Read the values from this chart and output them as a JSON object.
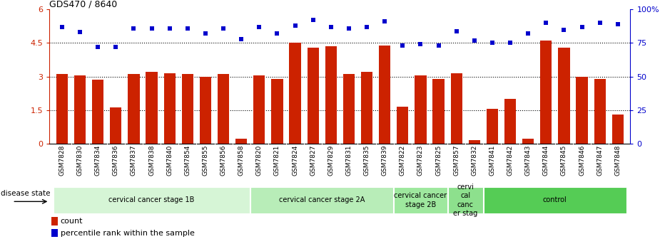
{
  "title": "GDS470 / 8640",
  "samples": [
    "GSM7828",
    "GSM7830",
    "GSM7834",
    "GSM7836",
    "GSM7837",
    "GSM7838",
    "GSM7840",
    "GSM7854",
    "GSM7855",
    "GSM7856",
    "GSM7858",
    "GSM7820",
    "GSM7821",
    "GSM7824",
    "GSM7827",
    "GSM7829",
    "GSM7831",
    "GSM7835",
    "GSM7839",
    "GSM7822",
    "GSM7823",
    "GSM7825",
    "GSM7857",
    "GSM7832",
    "GSM7841",
    "GSM7842",
    "GSM7843",
    "GSM7844",
    "GSM7845",
    "GSM7846",
    "GSM7847",
    "GSM7848"
  ],
  "bar_values": [
    3.1,
    3.05,
    2.85,
    1.6,
    3.1,
    3.2,
    3.15,
    3.1,
    3.0,
    3.1,
    0.2,
    3.05,
    2.9,
    4.5,
    4.3,
    4.35,
    3.1,
    3.2,
    4.4,
    1.65,
    3.05,
    2.9,
    3.15,
    0.15,
    1.55,
    2.0,
    0.2,
    4.6,
    4.3,
    3.0,
    2.9,
    1.3
  ],
  "scatter_values": [
    87,
    83,
    72,
    72,
    86,
    86,
    86,
    86,
    82,
    86,
    78,
    87,
    82,
    88,
    92,
    87,
    86,
    87,
    91,
    73,
    74,
    73,
    84,
    77,
    75,
    75,
    82,
    90,
    85,
    87,
    90,
    89
  ],
  "bar_color": "#cc2200",
  "scatter_color": "#0000cc",
  "ylim_left": [
    0,
    6
  ],
  "ylim_right": [
    0,
    100
  ],
  "yticks_left": [
    0,
    1.5,
    3.0,
    4.5,
    6.0
  ],
  "yticks_left_labels": [
    "0",
    "1.5",
    "3",
    "4.5",
    "6"
  ],
  "yticks_right": [
    0,
    25,
    50,
    75,
    100
  ],
  "yticks_right_labels": [
    "0",
    "25",
    "50",
    "75",
    "100%"
  ],
  "groups": [
    {
      "start": 0,
      "end": 10,
      "label": "cervical cancer stage 1B",
      "color": "#d6f5d6"
    },
    {
      "start": 11,
      "end": 18,
      "label": "cervical cancer stage 2A",
      "color": "#b8edb8"
    },
    {
      "start": 19,
      "end": 21,
      "label": "cervical cancer\nstage 2B",
      "color": "#9ee89e"
    },
    {
      "start": 22,
      "end": 23,
      "label": "cervi\ncal\ncanc\ner stag",
      "color": "#8de08d"
    },
    {
      "start": 24,
      "end": 31,
      "label": "control",
      "color": "#55cc55"
    }
  ],
  "dotted_lines": [
    1.5,
    3.0,
    4.5
  ],
  "legend_items": [
    "count",
    "percentile rank within the sample"
  ],
  "disease_state_label": "disease state"
}
